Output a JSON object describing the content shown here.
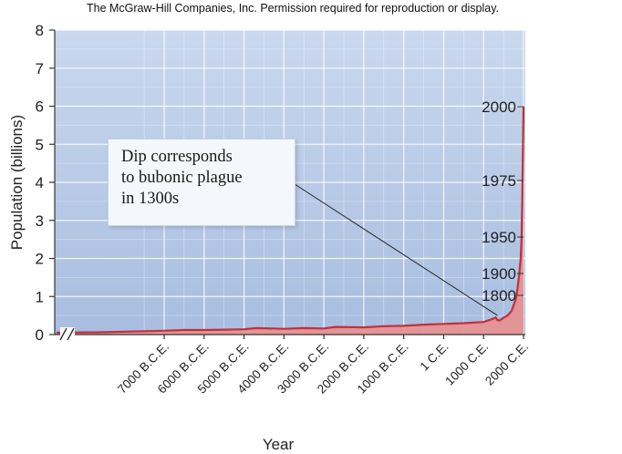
{
  "header": {
    "copyright": "The McGraw-Hill Companies, Inc. Permission required for reproduction or display."
  },
  "chart_data": {
    "type": "area",
    "title": "",
    "xlabel": "Year",
    "ylabel": "Population (billions)",
    "ylim": [
      0,
      8
    ],
    "xlim": [
      -8000,
      2000
    ],
    "y_ticks": [
      "0",
      "1",
      "2",
      "3",
      "4",
      "5",
      "6",
      "7",
      "8"
    ],
    "x_ticks": [
      {
        "value": -7000,
        "label": "7000 B.C.E."
      },
      {
        "value": -6000,
        "label": "6000 B.C.E."
      },
      {
        "value": -5000,
        "label": "5000 B.C.E."
      },
      {
        "value": -4000,
        "label": "4000 B.C.E."
      },
      {
        "value": -3000,
        "label": "3000 B.C.E."
      },
      {
        "value": -2000,
        "label": "2000 B.C.E."
      },
      {
        "value": -1000,
        "label": "1000 B.C.E."
      },
      {
        "value": 1,
        "label": "1 C.E."
      },
      {
        "value": 1000,
        "label": "1000 C.E."
      },
      {
        "value": 2000,
        "label": "2000 C.E."
      }
    ],
    "axis_break": true,
    "grid": true,
    "series": [
      {
        "color": "#c0313a",
        "fill": "#e88f8f",
        "x": [
          -8000,
          -7600,
          -7000,
          -6500,
          -6000,
          -5500,
          -5000,
          -4700,
          -4000,
          -3500,
          -3000,
          -2700,
          -2000,
          -1500,
          -1000,
          -500,
          1,
          500,
          1000,
          1200,
          1300,
          1350,
          1400,
          1500,
          1600,
          1700,
          1800,
          1850,
          1900,
          1930,
          1950,
          1960,
          1970,
          1975,
          1980,
          1990,
          2000
        ],
        "y": [
          0.05,
          0.06,
          0.1,
          0.12,
          0.12,
          0.13,
          0.14,
          0.17,
          0.15,
          0.17,
          0.16,
          0.2,
          0.19,
          0.22,
          0.23,
          0.26,
          0.28,
          0.3,
          0.33,
          0.4,
          0.45,
          0.38,
          0.37,
          0.44,
          0.5,
          0.62,
          0.9,
          1.2,
          1.65,
          2.0,
          2.5,
          3.0,
          3.6,
          4.0,
          4.4,
          5.2,
          6.0
        ]
      }
    ],
    "annotations": [
      {
        "text": "2000",
        "x": 2000,
        "y": 6.0
      },
      {
        "text": "1975",
        "x": 1975,
        "y": 4.0
      },
      {
        "text": "1950",
        "x": 1950,
        "y": 2.5
      },
      {
        "text": "1900",
        "x": 1900,
        "y": 1.65
      },
      {
        "text": "1800",
        "x": 1800,
        "y": 1.0
      }
    ],
    "callout": {
      "lines": [
        "Dip corresponds",
        "to bubonic plague",
        "in 1300s"
      ],
      "points_to": {
        "x": 1350,
        "y": 0.5
      }
    }
  }
}
